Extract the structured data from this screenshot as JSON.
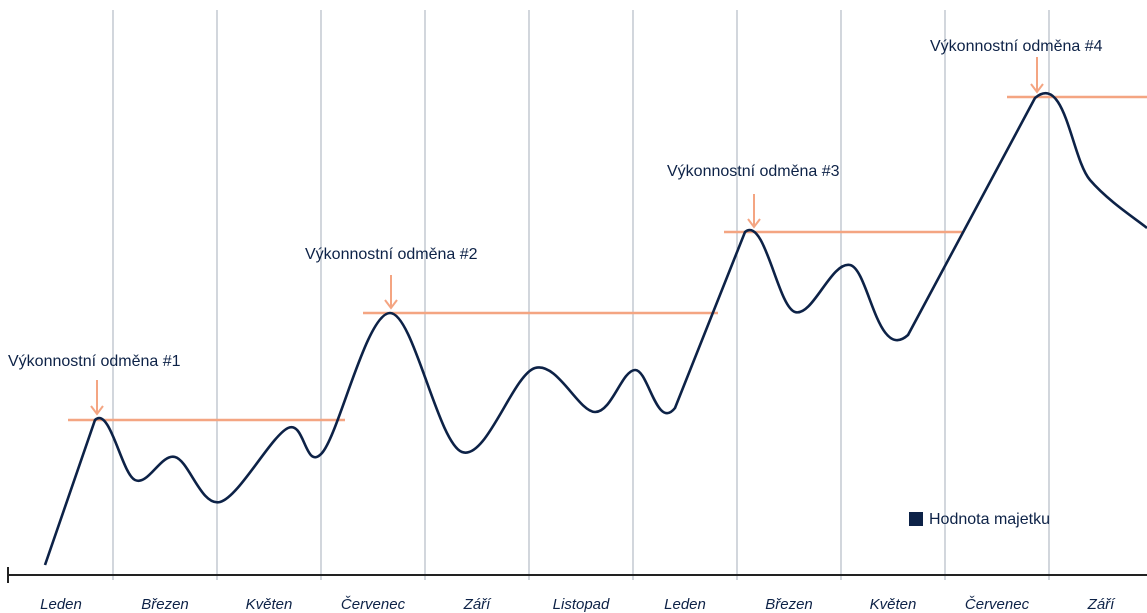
{
  "chart_data": {
    "type": "line",
    "categories": [
      "Leden",
      "Březen",
      "Květen",
      "Červenec",
      "Září",
      "Listopad",
      "Leden",
      "Březen",
      "Květen",
      "Červenec",
      "Září"
    ],
    "annotations": [
      "Výkonnostní odměna #1",
      "Výkonnostní odměna #2",
      "Výkonnostní odměna #3",
      "Výkonnostní odměna #4"
    ],
    "series": [
      {
        "name": "Hodnota majetku",
        "color": "#0d2247"
      }
    ],
    "grid": true
  }
}
